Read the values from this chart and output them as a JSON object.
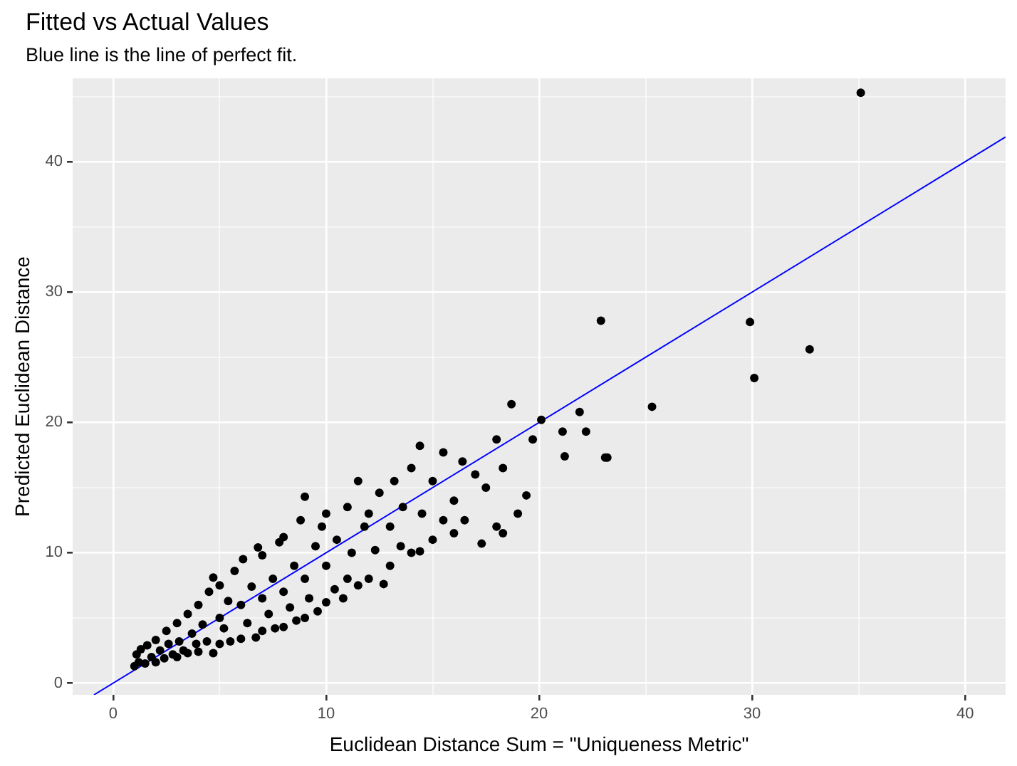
{
  "chart_data": {
    "type": "scatter",
    "title": "Fitted vs Actual Values",
    "subtitle": "Blue line is the line of perfect fit.",
    "xlabel": "Euclidean Distance Sum = \"Uniqueness Metric\"",
    "ylabel": "Predicted Euclidean Distance",
    "xlim": [
      -1.9,
      41.9
    ],
    "ylim": [
      -0.9,
      46.4
    ],
    "xticks": [
      0,
      {
        "value": 5,
        "label": null
      },
      10,
      {
        "value": 15,
        "label": null
      },
      20,
      {
        "value": 25,
        "label": null
      },
      30,
      {
        "value": 35,
        "label": null
      },
      40
    ],
    "yticks": [
      0,
      {
        "value": 5,
        "label": null
      },
      10,
      {
        "value": 15,
        "label": null
      },
      20,
      {
        "value": 25,
        "label": null
      },
      30,
      {
        "value": 35,
        "label": null
      },
      40,
      {
        "value": 45,
        "label": null
      }
    ],
    "grid": true,
    "legend": false,
    "series": [
      {
        "color": "#000000",
        "marker": "circle",
        "x": [
          1.0,
          1.1,
          1.2,
          1.3,
          1.5,
          1.6,
          1.8,
          2.0,
          2.0,
          2.2,
          2.4,
          2.5,
          2.6,
          2.8,
          3.0,
          3.0,
          3.1,
          3.3,
          3.5,
          3.5,
          3.7,
          3.9,
          4.0,
          4.0,
          4.2,
          4.4,
          4.5,
          4.7,
          4.7,
          5.0,
          5.0,
          5.0,
          5.2,
          5.4,
          5.5,
          5.7,
          6.0,
          6.0,
          6.1,
          6.3,
          6.5,
          6.7,
          6.8,
          7.0,
          7.0,
          7.0,
          7.3,
          7.5,
          7.6,
          7.8,
          8.0,
          8.0,
          8.0,
          8.3,
          8.5,
          8.6,
          8.8,
          9.0,
          9.0,
          9.0,
          9.2,
          9.5,
          9.6,
          9.8,
          10.0,
          10.0,
          10.0,
          10.4,
          10.5,
          10.8,
          11.0,
          11.0,
          11.2,
          11.5,
          11.5,
          11.8,
          12.0,
          12.0,
          12.3,
          12.7,
          12.5,
          13.0,
          13.0,
          13.2,
          13.5,
          13.6,
          14.0,
          14.0,
          14.4,
          14.4,
          14.5,
          15.0,
          15.0,
          15.5,
          15.5,
          16.0,
          16.0,
          16.4,
          16.5,
          17.0,
          17.3,
          17.5,
          18.0,
          18.0,
          18.3,
          18.3,
          18.7,
          19.0,
          19.4,
          19.7,
          20.1,
          21.1,
          21.2,
          21.9,
          22.2,
          22.9,
          23.1,
          23.2,
          25.3,
          29.9,
          30.1,
          32.7,
          35.1
        ],
        "values": [
          1.3,
          2.2,
          1.6,
          2.6,
          1.5,
          2.9,
          2.0,
          1.6,
          3.3,
          2.5,
          1.9,
          4.0,
          3.0,
          2.2,
          2.0,
          4.6,
          3.2,
          2.5,
          2.3,
          5.3,
          3.8,
          3.0,
          2.4,
          6.0,
          4.5,
          3.2,
          7.0,
          2.3,
          8.1,
          3.0,
          5.0,
          7.5,
          4.2,
          6.3,
          3.2,
          8.6,
          3.4,
          6.0,
          9.5,
          4.6,
          7.4,
          3.5,
          10.4,
          4.0,
          6.5,
          9.8,
          5.3,
          8.0,
          4.2,
          10.8,
          4.3,
          7.0,
          11.2,
          5.8,
          9.0,
          4.8,
          12.5,
          5.0,
          8.0,
          14.3,
          6.5,
          10.5,
          5.5,
          12.0,
          6.2,
          9.0,
          13.0,
          7.2,
          11.0,
          6.5,
          8.0,
          13.5,
          10.0,
          7.5,
          15.5,
          12.0,
          8.0,
          13.0,
          10.2,
          7.6,
          14.6,
          9.0,
          12.0,
          15.5,
          10.5,
          13.5,
          10.0,
          16.5,
          10.1,
          18.2,
          13.0,
          11.0,
          15.5,
          17.7,
          12.5,
          11.5,
          14.0,
          17.0,
          12.5,
          16.0,
          10.7,
          15.0,
          12.0,
          18.7,
          11.5,
          16.5,
          21.4,
          13.0,
          14.4,
          18.7,
          20.2,
          19.3,
          17.4,
          20.8,
          19.3,
          27.8,
          17.3,
          17.3,
          21.2,
          27.7,
          23.4,
          25.6,
          45.3
        ]
      },
      {
        "type": "line",
        "color": "#0000ff",
        "marker": "none",
        "x": [
          -0.9,
          41.9
        ],
        "values": [
          -0.9,
          41.9
        ]
      }
    ]
  }
}
